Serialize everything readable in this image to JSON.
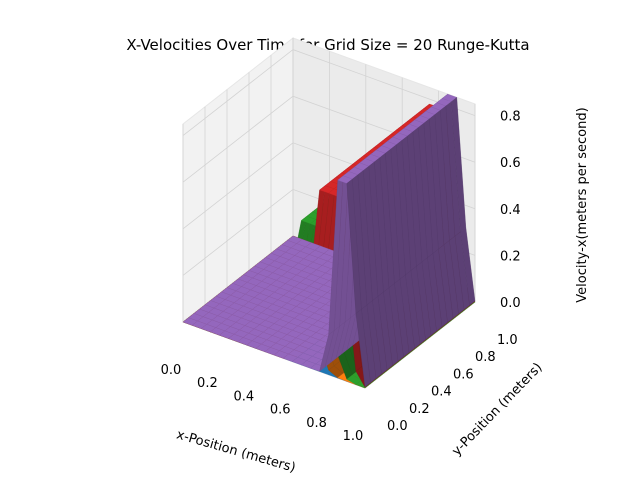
{
  "chart_data": {
    "type": "surface3d",
    "title": "X-Velocities Over Time for Grid Size = 20 Runge-Kutta",
    "xlabel": "x-Position (meters)",
    "ylabel": "y-Position (meters)",
    "zlabel": "Velocity-x(meters per second)",
    "xlim": [
      0,
      1
    ],
    "ylim": [
      0,
      1
    ],
    "zlim": [
      0,
      0.85
    ],
    "x_ticks": [
      "0.0",
      "0.2",
      "0.4",
      "0.6",
      "0.8",
      "1.0"
    ],
    "y_ticks": [
      "0.0",
      "0.2",
      "0.4",
      "0.6",
      "0.8",
      "1.0"
    ],
    "z_ticks": [
      "0.0",
      "0.2",
      "0.4",
      "0.6",
      "0.8"
    ],
    "grid": true,
    "grid_size": 20,
    "series": [
      {
        "color": "#1f77b4",
        "x_center": 0.18,
        "width": 0.06,
        "peak": 0.0
      },
      {
        "color": "#ff7f0e",
        "x_center": 0.6,
        "width": 0.1,
        "peak": 0.45
      },
      {
        "color": "#2ca02c",
        "x_center": 0.7,
        "width": 0.09,
        "peak": 0.62
      },
      {
        "color": "#d62728",
        "x_center": 0.8,
        "width": 0.08,
        "peak": 0.78
      },
      {
        "color": "#9467bd",
        "x_center": 0.88,
        "width": 0.05,
        "peak": 0.85
      }
    ]
  }
}
